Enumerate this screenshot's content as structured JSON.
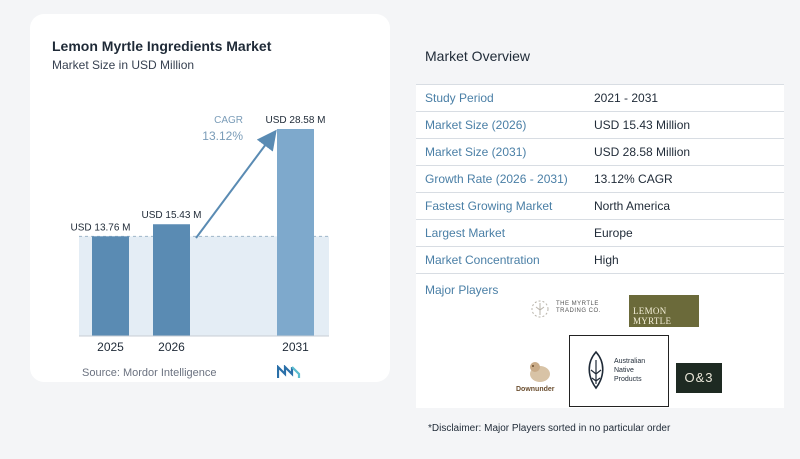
{
  "header": {
    "title": "Lemon Myrtle Ingredients Market",
    "subtitle": "Market Size in USD Million"
  },
  "chart_data": {
    "type": "bar",
    "categories": [
      "2025",
      "2026",
      "2031"
    ],
    "values": [
      13.76,
      15.43,
      28.58
    ],
    "value_labels": [
      "USD 13.76 M",
      "USD 15.43 M",
      "USD 28.58 M"
    ],
    "ylim": [
      0,
      30
    ],
    "annotation": {
      "label": "CAGR",
      "value": "13.12%"
    },
    "colors": {
      "bar": "#5a8bb3",
      "bar_light": "#7ea9cc",
      "baseline_band": "#e4edf5",
      "arrow": "#5a8bb3"
    }
  },
  "source": "Source: Mordor Intelligence",
  "overview": {
    "title": "Market Overview",
    "rows": [
      {
        "label": "Study Period",
        "value": "2021 - 2031"
      },
      {
        "label": "Market Size (2026)",
        "value": "USD 15.43 Million"
      },
      {
        "label": "Market Size (2031)",
        "value": "USD 28.58 Million"
      },
      {
        "label": "Growth Rate (2026 - 2031)",
        "value": "13.12% CAGR"
      },
      {
        "label": "Fastest Growing Market",
        "value": "North America"
      },
      {
        "label": "Largest Market",
        "value": "Europe"
      },
      {
        "label": "Market Concentration",
        "value": "High"
      }
    ]
  },
  "players": {
    "title": "Major Players",
    "logos": {
      "myrtle_trading": [
        "THE MYRTLE",
        "TRADING CO."
      ],
      "lemon_myrtle": "LEMON MYRTLE",
      "australian_native": [
        "Australian",
        "Native",
        "Products"
      ],
      "downunder": "Downunder",
      "o_and_3": "O&3"
    }
  },
  "disclaimer": "*Disclaimer: Major Players sorted in no particular order"
}
